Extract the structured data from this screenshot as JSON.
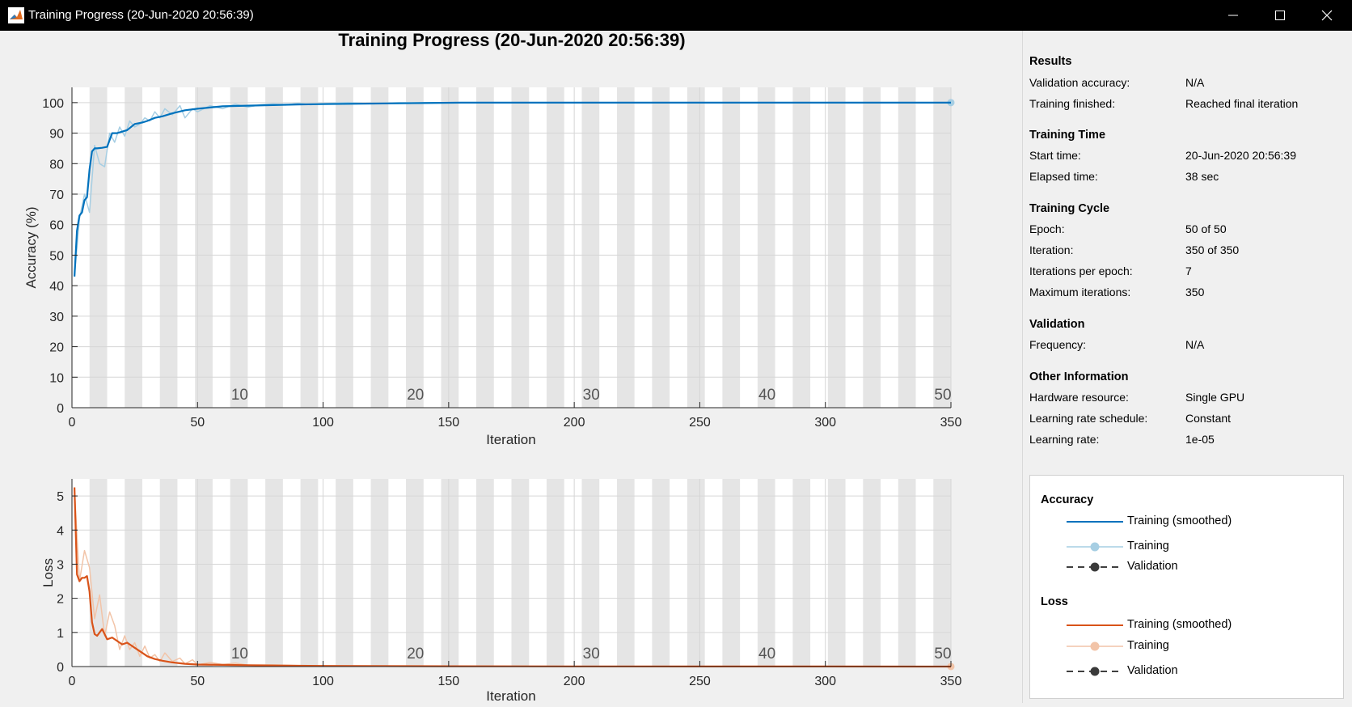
{
  "window": {
    "title": "Training Progress (20-Jun-2020 20:56:39)",
    "app_icon": "matlab-logo-icon",
    "controls": [
      "minimize-icon",
      "maximize-icon",
      "close-icon"
    ]
  },
  "plot_title": "Training Progress (20-Jun-2020 20:56:39)",
  "colors": {
    "accuracy_smoothed": "#0072bd",
    "accuracy_training": "#a6cee3",
    "loss_smoothed": "#d95319",
    "loss_training": "#f2c4a8",
    "epoch_band": "#e5e5e5",
    "grid": "#d6d6d6"
  },
  "chart_data": [
    {
      "type": "line",
      "xlabel": "Iteration",
      "ylabel": "Accuracy (%)",
      "xlim": [
        0,
        350
      ],
      "ylim": [
        0,
        105
      ],
      "xticks": [
        0,
        50,
        100,
        150,
        200,
        250,
        300,
        350
      ],
      "yticks": [
        0,
        10,
        20,
        30,
        40,
        50,
        60,
        70,
        80,
        90,
        100
      ],
      "grid": true,
      "epoch_labels": [
        "10",
        "20",
        "30",
        "40",
        "50"
      ],
      "series": [
        {
          "role": "training-smoothed",
          "x": [
            1,
            2,
            3,
            4,
            5,
            6,
            7,
            8,
            9,
            10,
            12,
            14,
            16,
            18,
            20,
            22,
            25,
            28,
            30,
            33,
            36,
            40,
            45,
            50,
            55,
            60,
            70,
            80,
            90,
            100,
            120,
            140,
            155,
            200,
            250,
            300,
            350
          ],
          "y": [
            43,
            58,
            63,
            64,
            68,
            69,
            78,
            84,
            85,
            85,
            85.2,
            85.5,
            90,
            90,
            90.5,
            91,
            93,
            93.5,
            94,
            95,
            95.5,
            96.5,
            97.5,
            98,
            98.4,
            98.8,
            99,
            99.2,
            99.4,
            99.5,
            99.7,
            99.85,
            100,
            100,
            100,
            100,
            100
          ]
        },
        {
          "role": "training",
          "x": [
            1,
            3,
            5,
            7,
            9,
            11,
            13,
            15,
            17,
            19,
            21,
            23,
            25,
            27,
            29,
            31,
            33,
            35,
            37,
            40,
            43,
            45,
            48,
            50,
            55,
            60,
            65,
            70,
            75,
            80,
            85,
            90,
            95,
            100,
            110,
            120,
            130,
            140,
            150,
            155,
            200,
            250,
            300,
            350
          ],
          "y": [
            43,
            62,
            70,
            64,
            86,
            80,
            79,
            90,
            87,
            92,
            89,
            94,
            92,
            93,
            95,
            94,
            97,
            95,
            98,
            96,
            99,
            95,
            98,
            97,
            99,
            98,
            99.5,
            98.5,
            99.3,
            99.6,
            99.2,
            99.8,
            99.3,
            99.7,
            100,
            99.6,
            100,
            100,
            100,
            100,
            100,
            100,
            100,
            100
          ]
        }
      ]
    },
    {
      "type": "line",
      "xlabel": "Iteration",
      "ylabel": "Loss",
      "xlim": [
        0,
        350
      ],
      "ylim": [
        0,
        5.5
      ],
      "xticks": [
        0,
        50,
        100,
        150,
        200,
        250,
        300,
        350
      ],
      "yticks": [
        0,
        1,
        2,
        3,
        4,
        5
      ],
      "grid": true,
      "epoch_labels": [
        "10",
        "20",
        "30",
        "40",
        "50"
      ],
      "series": [
        {
          "role": "training-smoothed",
          "x": [
            1,
            2,
            3,
            4,
            5,
            6,
            7,
            8,
            9,
            10,
            12,
            14,
            16,
            18,
            20,
            22,
            25,
            28,
            30,
            33,
            36,
            40,
            45,
            50,
            60,
            70,
            80,
            100,
            150,
            200,
            250,
            300,
            350
          ],
          "y": [
            5.25,
            2.7,
            2.5,
            2.6,
            2.6,
            2.65,
            2.2,
            1.3,
            0.95,
            0.9,
            1.1,
            0.8,
            0.85,
            0.75,
            0.65,
            0.7,
            0.55,
            0.4,
            0.3,
            0.22,
            0.17,
            0.12,
            0.08,
            0.06,
            0.05,
            0.04,
            0.03,
            0.02,
            0.01,
            0.005,
            0.003,
            0.002,
            0.001
          ]
        },
        {
          "role": "training",
          "x": [
            1,
            3,
            5,
            7,
            9,
            11,
            13,
            15,
            17,
            19,
            21,
            23,
            25,
            27,
            29,
            31,
            33,
            35,
            37,
            40,
            43,
            45,
            48,
            50,
            55,
            60,
            65,
            70,
            80,
            90,
            100,
            120,
            150,
            200,
            250,
            300,
            350
          ],
          "y": [
            5.2,
            2.5,
            3.4,
            2.9,
            1.4,
            2.1,
            0.9,
            1.6,
            1.2,
            0.5,
            0.9,
            0.5,
            0.7,
            0.3,
            0.6,
            0.25,
            0.35,
            0.15,
            0.4,
            0.15,
            0.25,
            0.08,
            0.2,
            0.05,
            0.12,
            0.06,
            0.1,
            0.04,
            0.05,
            0.03,
            0.02,
            0.01,
            0.01,
            0.005,
            0.003,
            0.002,
            0.001
          ]
        }
      ]
    }
  ],
  "sidebar": {
    "results": {
      "heading": "Results",
      "rows": [
        {
          "label": "Validation accuracy:",
          "value": "N/A"
        },
        {
          "label": "Training finished:",
          "value": "Reached final iteration"
        }
      ]
    },
    "time": {
      "heading": "Training Time",
      "rows": [
        {
          "label": "Start time:",
          "value": "20-Jun-2020 20:56:39"
        },
        {
          "label": "Elapsed time:",
          "value": "38 sec"
        }
      ]
    },
    "cycle": {
      "heading": "Training Cycle",
      "rows": [
        {
          "label": "Epoch:",
          "value": "50 of 50"
        },
        {
          "label": "Iteration:",
          "value": "350 of 350"
        },
        {
          "label": "Iterations per epoch:",
          "value": "7"
        },
        {
          "label": "Maximum iterations:",
          "value": "350"
        }
      ]
    },
    "validation": {
      "heading": "Validation",
      "rows": [
        {
          "label": "Frequency:",
          "value": "N/A"
        }
      ]
    },
    "other": {
      "heading": "Other Information",
      "rows": [
        {
          "label": "Hardware resource:",
          "value": "Single GPU"
        },
        {
          "label": "Learning rate schedule:",
          "value": "Constant"
        },
        {
          "label": "Learning rate:",
          "value": "1e-05"
        }
      ]
    }
  },
  "legend": {
    "accuracy": {
      "heading": "Accuracy",
      "smoothed": "Training (smoothed)",
      "training": "Training",
      "validation": "Validation"
    },
    "loss": {
      "heading": "Loss",
      "smoothed": "Training (smoothed)",
      "training": "Training",
      "validation": "Validation"
    }
  }
}
